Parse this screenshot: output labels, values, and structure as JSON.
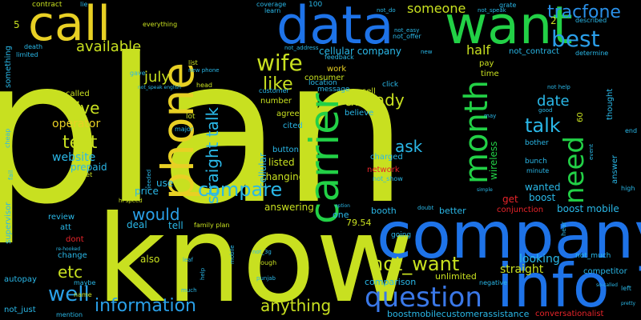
{
  "words": [
    {
      "text": "plan",
      "color": "#c8e020",
      "font": 250
    },
    {
      "text": "know",
      "color": "#c8e020",
      "font": 150
    },
    {
      "text": "company",
      "color": "#1e73e8",
      "font": 80
    },
    {
      "text": "info",
      "color": "#1e73e8",
      "font": 75
    },
    {
      "text": "data",
      "color": "#1e73e8",
      "font": 65
    },
    {
      "text": "want",
      "color": "#22d046",
      "font": 65
    },
    {
      "text": "call",
      "color": "#e8d024",
      "font": 60
    },
    {
      "text": "phone",
      "color": "#e8d024",
      "font": 55
    },
    {
      "text": "carrier",
      "color": "#22d046",
      "font": 50
    },
    {
      "text": "question",
      "color": "#3a78e8",
      "font": 34
    },
    {
      "text": "month",
      "color": "#22d046",
      "font": 40
    },
    {
      "text": "need",
      "color": "#22d046",
      "font": 34
    },
    {
      "text": "tracfone",
      "color": "#2a90e8",
      "font": 22
    },
    {
      "text": "best",
      "color": "#2a9ee8",
      "font": 28
    },
    {
      "text": "wife",
      "color": "#c8e020",
      "font": 28
    },
    {
      "text": "like",
      "color": "#c8e020",
      "font": 22
    },
    {
      "text": "compare",
      "color": "#2ab8e8",
      "font": 24
    },
    {
      "text": "would",
      "color": "#2aa0e8",
      "font": 20
    },
    {
      "text": "well",
      "color": "#2aa0e8",
      "font": 26
    },
    {
      "text": "information",
      "color": "#2aa0e8",
      "font": 22
    },
    {
      "text": "anything",
      "color": "#c8e020",
      "font": 20
    },
    {
      "text": "not_want",
      "color": "#c8e020",
      "font": 24
    },
    {
      "text": "talk",
      "color": "#2ab8e8",
      "font": 24
    },
    {
      "text": "text",
      "color": "#c8e020",
      "font": 22
    },
    {
      "text": "give",
      "color": "#c8e020",
      "font": 20
    },
    {
      "text": "etc",
      "color": "#c8e020",
      "font": 20
    },
    {
      "text": "straight",
      "color": "#2ab8e8",
      "font": 20
    },
    {
      "text": "straight talk",
      "color": "#2ab8e8",
      "font": 20
    },
    {
      "text": "already",
      "color": "#c8e020",
      "font": 20
    },
    {
      "text": "ask",
      "color": "#2ab8e8",
      "font": 20
    },
    {
      "text": "date",
      "color": "#2ab8e8",
      "font": 18
    },
    {
      "text": "july",
      "color": "#c8e020",
      "font": 18
    },
    {
      "text": "available",
      "color": "#c8e020",
      "font": 18
    },
    {
      "text": "someone",
      "color": "#c8e020",
      "font": 16
    },
    {
      "text": "half",
      "color": "#c8e020",
      "font": 16
    },
    {
      "text": "operator",
      "color": "#e8d024",
      "font": 14
    },
    {
      "text": "website",
      "color": "#2ab8e8",
      "font": 14
    },
    {
      "text": "prepaid",
      "color": "#2ab8e8",
      "font": 12
    },
    {
      "text": "price",
      "color": "#2ab8e8",
      "font": 12
    },
    {
      "text": "deal",
      "color": "#2ab8e8",
      "font": 12
    },
    {
      "text": "tell",
      "color": "#2ab8e8",
      "font": 12
    },
    {
      "text": "use",
      "color": "#2ab8e8",
      "font": 12
    },
    {
      "text": "also",
      "color": "#c8e020",
      "font": 12
    },
    {
      "text": "answering",
      "color": "#c8e020",
      "font": 12
    },
    {
      "text": "changing",
      "color": "#c8e020",
      "font": 12
    },
    {
      "text": "listed",
      "color": "#c8e020",
      "font": 12
    },
    {
      "text": "button",
      "color": "#2ab8e8",
      "font": 10
    },
    {
      "text": "agree",
      "color": "#c8e020",
      "font": 10
    },
    {
      "text": "number",
      "color": "#c8e020",
      "font": 10
    },
    {
      "text": "cellular",
      "color": "#2ab8e8",
      "font": 12
    },
    {
      "text": "cellular company",
      "color": "#2ab8e8",
      "font": 12
    },
    {
      "text": "consumer",
      "color": "#c8e020",
      "font": 10
    },
    {
      "text": "work",
      "color": "#e8d024",
      "font": 10
    },
    {
      "text": "location",
      "color": "#2ab8e8",
      "font": 9
    },
    {
      "text": "message",
      "color": "#2ab8e8",
      "font": 9
    },
    {
      "text": "cited",
      "color": "#2ab8e8",
      "font": 10
    },
    {
      "text": "believe",
      "color": "#2ab8e8",
      "font": 10
    },
    {
      "text": "charged",
      "color": "#2ab8e8",
      "font": 10
    },
    {
      "text": "network",
      "color": "#e8242a",
      "font": 10
    },
    {
      "text": "not_show",
      "color": "#2ab8e8",
      "font": 8
    },
    {
      "text": "sell",
      "color": "#c8e020",
      "font": 10
    },
    {
      "text": "pay",
      "color": "#c8e020",
      "font": 10
    },
    {
      "text": "time",
      "color": "#c8e020",
      "font": 10
    },
    {
      "text": "wireless",
      "color": "#22d046",
      "font": 12
    },
    {
      "text": "wanted",
      "color": "#2ab8e8",
      "font": 12
    },
    {
      "text": "boost",
      "color": "#2ab8e8",
      "font": 12
    },
    {
      "text": "get",
      "color": "#e8242a",
      "font": 12
    },
    {
      "text": "boost mobile",
      "color": "#2ab8e8",
      "font": 12
    },
    {
      "text": "conjunction",
      "color": "#e8242a",
      "font": 10
    },
    {
      "text": "looking",
      "color": "#2ab8e8",
      "font": 14
    },
    {
      "text": "not_much",
      "color": "#2ab8e8",
      "font": 9
    },
    {
      "text": "competitor",
      "color": "#2ab8e8",
      "font": 10
    },
    {
      "text": "comparison",
      "color": "#2ab8e8",
      "font": 11
    },
    {
      "text": "unlimited",
      "color": "#c8e020",
      "font": 11
    },
    {
      "text": "negative",
      "color": "#2ab8e8",
      "font": 8
    },
    {
      "text": "boostmobilecustomerassistance",
      "color": "#2ab8e8",
      "font": 11
    },
    {
      "text": "conversationalist",
      "color": "#e8242a",
      "font": 10
    },
    {
      "text": "better",
      "color": "#2ab8e8",
      "font": 11
    },
    {
      "text": "booth",
      "color": "#2ab8e8",
      "font": 11
    },
    {
      "text": "one",
      "color": "#2ab8e8",
      "font": 11
    },
    {
      "text": "79.54",
      "color": "#c8e020",
      "font": 11
    },
    {
      "text": "going",
      "color": "#2ab8e8",
      "font": 9
    },
    {
      "text": "review",
      "color": "#2ab8e8",
      "font": 10
    },
    {
      "text": "att",
      "color": "#2ab8e8",
      "font": 10
    },
    {
      "text": "dont",
      "color": "#e8242a",
      "font": 10
    },
    {
      "text": "change",
      "color": "#2ab8e8",
      "font": 10
    },
    {
      "text": "autopay",
      "color": "#2ab8e8",
      "font": 10
    },
    {
      "text": "supervisor",
      "color": "#2ab8e8",
      "font": 10
    },
    {
      "text": "not_just",
      "color": "#2ab8e8",
      "font": 10
    },
    {
      "text": "family plan",
      "color": "#c8e020",
      "font": 8
    },
    {
      "text": "dough",
      "color": "#c8e020",
      "font": 8
    },
    {
      "text": "not_3g",
      "color": "#2ab8e8",
      "font": 7
    },
    {
      "text": "leaf",
      "color": "#2ab8e8",
      "font": 7
    },
    {
      "text": "name",
      "color": "#c8e020",
      "font": 8
    },
    {
      "text": "maybe",
      "color": "#2ab8e8",
      "font": 8
    },
    {
      "text": "mention",
      "color": "#2ab8e8",
      "font": 8
    },
    {
      "text": "contract",
      "color": "#c8e020",
      "font": 9
    },
    {
      "text": "not_contract",
      "color": "#2ab8e8",
      "font": 10
    },
    {
      "text": "not_offer",
      "color": "#2ab8e8",
      "font": 8
    },
    {
      "text": "not_easy",
      "color": "#2ab8e8",
      "font": 7
    },
    {
      "text": "not_address",
      "color": "#2ab8e8",
      "font": 7
    },
    {
      "text": "new phone",
      "color": "#2ab8e8",
      "font": 7
    },
    {
      "text": "big",
      "color": "#c8e020",
      "font": 10
    },
    {
      "text": "gave",
      "color": "#2ab8e8",
      "font": 8
    },
    {
      "text": "limited",
      "color": "#2ab8e8",
      "font": 8
    },
    {
      "text": "death",
      "color": "#2ab8e8",
      "font": 8
    },
    {
      "text": "something",
      "color": "#2ab8e8",
      "font": 10
    },
    {
      "text": "cheap",
      "color": "#2ab8e8",
      "font": 8
    },
    {
      "text": "called",
      "color": "#c8e020",
      "font": 10
    },
    {
      "text": "lot",
      "color": "#c8e020",
      "font": 9
    },
    {
      "text": "major",
      "color": "#2ab8e8",
      "font": 8
    },
    {
      "text": "needed",
      "color": "#2ab8e8",
      "font": 7
    },
    {
      "text": "hi speed",
      "color": "#c8e020",
      "font": 7
    },
    {
      "text": "not_get",
      "color": "#c8e020",
      "font": 8
    },
    {
      "text": "head",
      "color": "#c8e020",
      "font": 8
    },
    {
      "text": "list",
      "color": "#c8e020",
      "font": 8
    },
    {
      "text": "feedback",
      "color": "#2ab8e8",
      "font": 8
    },
    {
      "text": "new",
      "color": "#2ab8e8",
      "font": 7
    },
    {
      "text": "customer",
      "color": "#2ab8e8",
      "font": 8
    },
    {
      "text": "click",
      "color": "#2ab8e8",
      "font": 9
    },
    {
      "text": "learn",
      "color": "#2ab8e8",
      "font": 8
    },
    {
      "text": "coverage",
      "color": "#2ab8e8",
      "font": 8
    },
    {
      "text": "100",
      "color": "#2ab8e8",
      "font": 9
    },
    {
      "text": "not_do",
      "color": "#2ab8e8",
      "font": 7
    },
    {
      "text": "not_speak",
      "color": "#2ab8e8",
      "font": 7
    },
    {
      "text": "grate",
      "color": "#2ab8e8",
      "font": 8
    },
    {
      "text": "described",
      "color": "#2ab8e8",
      "font": 8
    },
    {
      "text": "determine",
      "color": "#2ab8e8",
      "font": 8
    },
    {
      "text": "thought",
      "color": "#2ab8e8",
      "font": 10
    },
    {
      "text": "answer",
      "color": "#2ab8e8",
      "font": 10
    },
    {
      "text": "bunch",
      "color": "#2ab8e8",
      "font": 9
    },
    {
      "text": "bother",
      "color": "#2ab8e8",
      "font": 9
    },
    {
      "text": "minute",
      "color": "#2ab8e8",
      "font": 8
    },
    {
      "text": "not help",
      "color": "#2ab8e8",
      "font": 7
    },
    {
      "text": "good",
      "color": "#2ab8e8",
      "font": 7
    },
    {
      "text": "may",
      "color": "#2ab8e8",
      "font": 7
    },
    {
      "text": "60",
      "color": "#c8e020",
      "font": 10
    },
    {
      "text": "2",
      "color": "#c8e020",
      "font": 12
    },
    {
      "text": "5",
      "color": "#c8e020",
      "font": 12
    },
    {
      "text": "end",
      "color": "#2ab8e8",
      "font": 8
    },
    {
      "text": "high",
      "color": "#2ab8e8",
      "font": 8
    },
    {
      "text": "left",
      "color": "#2ab8e8",
      "font": 8
    },
    {
      "text": "pretty",
      "color": "#2ab8e8",
      "font": 6
    },
    {
      "text": "hear",
      "color": "#2ab8e8",
      "font": 8
    },
    {
      "text": "doubt",
      "color": "#2ab8e8",
      "font": 7
    },
    {
      "text": "lie",
      "color": "#2ab8e8",
      "font": 8
    },
    {
      "text": "everything",
      "color": "#c8e020",
      "font": 8
    },
    {
      "text": "simple",
      "color": "#2ab8e8",
      "font": 6
    },
    {
      "text": "event",
      "color": "#2ab8e8",
      "font": 7
    },
    {
      "text": "fail",
      "color": "#2ab8e8",
      "font": 8
    },
    {
      "text": "help",
      "color": "#2ab8e8",
      "font": 7
    },
    {
      "text": "much",
      "color": "#2ab8e8",
      "font": 7
    },
    {
      "text": "punjab",
      "color": "#2ab8e8",
      "font": 7
    },
    {
      "text": "mobile",
      "color": "#2ab8e8",
      "font": 7
    },
    {
      "text": "option",
      "color": "#2ab8e8",
      "font": 6
    },
    {
      "text": "not_speak english",
      "color": "#2ab8e8",
      "font": 6
    },
    {
      "text": "re-hooked",
      "color": "#2ab8e8",
      "font": 6
    },
    {
      "text": "so-called",
      "color": "#2ab8e8",
      "font": 6
    }
  ]
}
